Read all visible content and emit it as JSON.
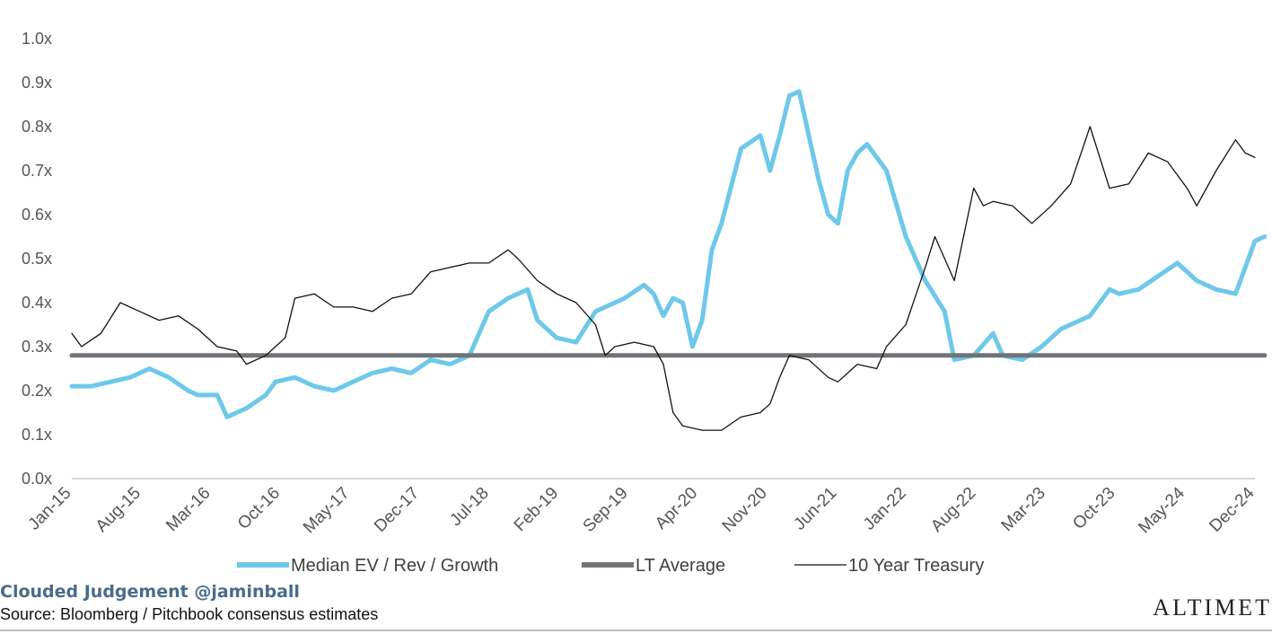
{
  "chart_data": {
    "type": "line",
    "title": "",
    "xlabel": "",
    "ylabel": "",
    "ylim": [
      0,
      1.0
    ],
    "y_ticks": [
      "0.0x",
      "0.1x",
      "0.2x",
      "0.3x",
      "0.4x",
      "0.5x",
      "0.6x",
      "0.7x",
      "0.8x",
      "0.9x",
      "1.0x"
    ],
    "x_ticks": [
      "Jan-15",
      "Aug-15",
      "Mar-16",
      "Oct-16",
      "May-17",
      "Dec-17",
      "Jul-18",
      "Feb-19",
      "Sep-19",
      "Apr-20",
      "Nov-20",
      "Jun-21",
      "Jan-22",
      "Aug-22",
      "Mar-23",
      "Oct-23",
      "May-24",
      "Dec-24"
    ],
    "x_range": [
      "2015-01",
      "2025-03"
    ],
    "grid": false,
    "legend_position": "bottom",
    "series": [
      {
        "name": "Median EV / Rev / Growth",
        "color": "#6ec8ea",
        "style": "thick",
        "points": [
          [
            "2015-01",
            0.21
          ],
          [
            "2015-03",
            0.21
          ],
          [
            "2015-05",
            0.22
          ],
          [
            "2015-07",
            0.23
          ],
          [
            "2015-09",
            0.25
          ],
          [
            "2015-11",
            0.23
          ],
          [
            "2016-01",
            0.2
          ],
          [
            "2016-02",
            0.19
          ],
          [
            "2016-04",
            0.19
          ],
          [
            "2016-05",
            0.14
          ],
          [
            "2016-07",
            0.16
          ],
          [
            "2016-09",
            0.19
          ],
          [
            "2016-10",
            0.22
          ],
          [
            "2016-12",
            0.23
          ],
          [
            "2017-02",
            0.21
          ],
          [
            "2017-04",
            0.2
          ],
          [
            "2017-06",
            0.22
          ],
          [
            "2017-08",
            0.24
          ],
          [
            "2017-10",
            0.25
          ],
          [
            "2017-12",
            0.24
          ],
          [
            "2018-02",
            0.27
          ],
          [
            "2018-04",
            0.26
          ],
          [
            "2018-06",
            0.28
          ],
          [
            "2018-07",
            0.33
          ],
          [
            "2018-08",
            0.38
          ],
          [
            "2018-10",
            0.41
          ],
          [
            "2018-12",
            0.43
          ],
          [
            "2019-01",
            0.36
          ],
          [
            "2019-03",
            0.32
          ],
          [
            "2019-05",
            0.31
          ],
          [
            "2019-07",
            0.38
          ],
          [
            "2019-09",
            0.4
          ],
          [
            "2019-10",
            0.41
          ],
          [
            "2019-12",
            0.44
          ],
          [
            "2020-01",
            0.42
          ],
          [
            "2020-02",
            0.37
          ],
          [
            "2020-03",
            0.41
          ],
          [
            "2020-04",
            0.4
          ],
          [
            "2020-05",
            0.3
          ],
          [
            "2020-06",
            0.36
          ],
          [
            "2020-07",
            0.52
          ],
          [
            "2020-08",
            0.58
          ],
          [
            "2020-10",
            0.75
          ],
          [
            "2020-12",
            0.78
          ],
          [
            "2021-01",
            0.7
          ],
          [
            "2021-02",
            0.78
          ],
          [
            "2021-03",
            0.87
          ],
          [
            "2021-04",
            0.88
          ],
          [
            "2021-05",
            0.78
          ],
          [
            "2021-06",
            0.68
          ],
          [
            "2021-07",
            0.6
          ],
          [
            "2021-08",
            0.58
          ],
          [
            "2021-09",
            0.7
          ],
          [
            "2021-10",
            0.74
          ],
          [
            "2021-11",
            0.76
          ],
          [
            "2022-01",
            0.7
          ],
          [
            "2022-03",
            0.55
          ],
          [
            "2022-05",
            0.45
          ],
          [
            "2022-07",
            0.38
          ],
          [
            "2022-08",
            0.27
          ],
          [
            "2022-10",
            0.28
          ],
          [
            "2022-12",
            0.33
          ],
          [
            "2023-01",
            0.28
          ],
          [
            "2023-03",
            0.27
          ],
          [
            "2023-05",
            0.3
          ],
          [
            "2023-07",
            0.34
          ],
          [
            "2023-08",
            0.35
          ],
          [
            "2023-10",
            0.37
          ],
          [
            "2023-12",
            0.43
          ],
          [
            "2024-01",
            0.42
          ],
          [
            "2024-03",
            0.43
          ],
          [
            "2024-05",
            0.46
          ],
          [
            "2024-07",
            0.49
          ],
          [
            "2024-09",
            0.45
          ],
          [
            "2024-11",
            0.43
          ],
          [
            "2025-01",
            0.42
          ],
          [
            "2025-02",
            0.48
          ],
          [
            "2025-03",
            0.54
          ],
          [
            "2025-04",
            0.55
          ]
        ]
      },
      {
        "name": "LT Average",
        "color": "#707478",
        "style": "thick",
        "points": [
          [
            "2015-01",
            0.28
          ],
          [
            "2025-04",
            0.28
          ]
        ]
      },
      {
        "name": "10 Year Treasury",
        "color": "#111111",
        "style": "thin",
        "points": [
          [
            "2015-01",
            0.33
          ],
          [
            "2015-02",
            0.3
          ],
          [
            "2015-04",
            0.33
          ],
          [
            "2015-06",
            0.4
          ],
          [
            "2015-08",
            0.38
          ],
          [
            "2015-10",
            0.36
          ],
          [
            "2015-12",
            0.37
          ],
          [
            "2016-02",
            0.34
          ],
          [
            "2016-04",
            0.3
          ],
          [
            "2016-06",
            0.29
          ],
          [
            "2016-07",
            0.26
          ],
          [
            "2016-09",
            0.28
          ],
          [
            "2016-10",
            0.3
          ],
          [
            "2016-11",
            0.32
          ],
          [
            "2016-12",
            0.41
          ],
          [
            "2017-02",
            0.42
          ],
          [
            "2017-04",
            0.39
          ],
          [
            "2017-06",
            0.39
          ],
          [
            "2017-08",
            0.38
          ],
          [
            "2017-10",
            0.41
          ],
          [
            "2017-12",
            0.42
          ],
          [
            "2018-02",
            0.47
          ],
          [
            "2018-04",
            0.48
          ],
          [
            "2018-06",
            0.49
          ],
          [
            "2018-08",
            0.49
          ],
          [
            "2018-10",
            0.52
          ],
          [
            "2018-11",
            0.5
          ],
          [
            "2019-01",
            0.45
          ],
          [
            "2019-03",
            0.42
          ],
          [
            "2019-05",
            0.4
          ],
          [
            "2019-07",
            0.35
          ],
          [
            "2019-08",
            0.28
          ],
          [
            "2019-09",
            0.3
          ],
          [
            "2019-11",
            0.31
          ],
          [
            "2020-01",
            0.3
          ],
          [
            "2020-02",
            0.26
          ],
          [
            "2020-03",
            0.15
          ],
          [
            "2020-04",
            0.12
          ],
          [
            "2020-06",
            0.11
          ],
          [
            "2020-08",
            0.11
          ],
          [
            "2020-10",
            0.14
          ],
          [
            "2020-12",
            0.15
          ],
          [
            "2021-01",
            0.17
          ],
          [
            "2021-02",
            0.23
          ],
          [
            "2021-03",
            0.28
          ],
          [
            "2021-05",
            0.27
          ],
          [
            "2021-07",
            0.23
          ],
          [
            "2021-08",
            0.22
          ],
          [
            "2021-10",
            0.26
          ],
          [
            "2021-12",
            0.25
          ],
          [
            "2022-01",
            0.3
          ],
          [
            "2022-03",
            0.35
          ],
          [
            "2022-05",
            0.48
          ],
          [
            "2022-06",
            0.55
          ],
          [
            "2022-08",
            0.45
          ],
          [
            "2022-10",
            0.66
          ],
          [
            "2022-11",
            0.62
          ],
          [
            "2022-12",
            0.63
          ],
          [
            "2023-02",
            0.62
          ],
          [
            "2023-04",
            0.58
          ],
          [
            "2023-06",
            0.62
          ],
          [
            "2023-08",
            0.67
          ],
          [
            "2023-10",
            0.8
          ],
          [
            "2023-12",
            0.66
          ],
          [
            "2024-02",
            0.67
          ],
          [
            "2024-04",
            0.74
          ],
          [
            "2024-06",
            0.72
          ],
          [
            "2024-08",
            0.66
          ],
          [
            "2024-09",
            0.62
          ],
          [
            "2024-11",
            0.7
          ],
          [
            "2025-01",
            0.77
          ],
          [
            "2025-02",
            0.74
          ],
          [
            "2025-03",
            0.73
          ]
        ]
      }
    ],
    "legend": [
      {
        "label": "Median EV / Rev / Growth",
        "color": "#6ec8ea",
        "style": "thick"
      },
      {
        "label": "LT Average",
        "color": "#707478",
        "style": "thick"
      },
      {
        "label": "10 Year Treasury",
        "color": "#111111",
        "style": "thin"
      }
    ]
  },
  "footer": {
    "credit": "Clouded Judgement @jaminball",
    "source": "Source: Bloomberg / Pitchbook consensus estimates",
    "brand": "ALTIMET"
  },
  "colors": {
    "axis": "#c8c8c8",
    "tick_text": "#555555"
  }
}
